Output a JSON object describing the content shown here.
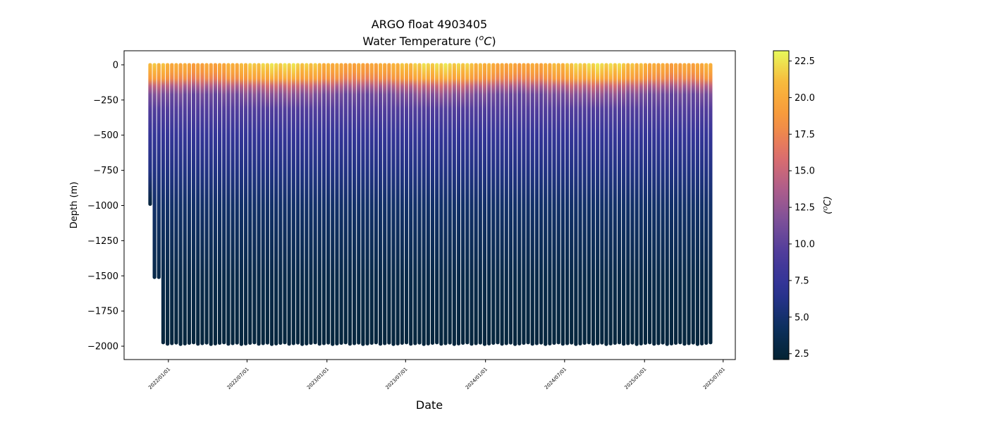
{
  "chart_data": {
    "type": "scatter",
    "title": "ARGO float 4903405",
    "subtitle": "Water Temperature (ᴼC)",
    "subtitle_parts": {
      "main": "Water Temperature (",
      "sup": "o",
      "unit": "C",
      "close": ")"
    },
    "xlabel": "Date",
    "ylabel": "Depth (m)",
    "colorbar_label": "(ᴼC)",
    "colorbar_label_parts": {
      "open": "(",
      "sup": "o",
      "unit": "C",
      "close": ")"
    },
    "colormap": "thermal",
    "colormap_stops": [
      "#042333",
      "#0d3060",
      "#2c3395",
      "#4a3a9b",
      "#7a4f9a",
      "#b05e8a",
      "#e0706a",
      "#f7963c",
      "#f9b43a",
      "#e8fa5b"
    ],
    "clim": [
      2.1,
      23.2
    ],
    "xlim": [
      "2021-09-21",
      "2025-07-29"
    ],
    "ylim": [
      -2095,
      100
    ],
    "x_ticks": [
      "2022/01/01",
      "2022/07/01",
      "2023/01/01",
      "2023/07/01",
      "2024/01/01",
      "2024/07/01",
      "2025/01/01",
      "2025/07/01"
    ],
    "y_ticks": [
      0,
      -250,
      -500,
      -750,
      -1000,
      -1250,
      -1500,
      -1750,
      -2000
    ],
    "colorbar_ticks": [
      "2.5",
      "5.0",
      "7.5",
      "10.0",
      "12.5",
      "15.0",
      "17.5",
      "20.0",
      "22.5"
    ],
    "profiles": {
      "first_date": "2021-11-20",
      "last_date": "2025-06-10",
      "interval_days": 10,
      "initial_max_depths": [
        -990,
        -1510,
        -1510
      ],
      "max_depth": -1980
    },
    "typical_profile": {
      "depth": [
        0,
        -60,
        -110,
        -160,
        -220,
        -320,
        -500,
        -750,
        -1000,
        -1500,
        -2000
      ],
      "temperature": [
        21.0,
        20.0,
        18.5,
        14.5,
        11.5,
        9.5,
        7.5,
        6.0,
        4.8,
        3.3,
        2.5
      ]
    }
  }
}
